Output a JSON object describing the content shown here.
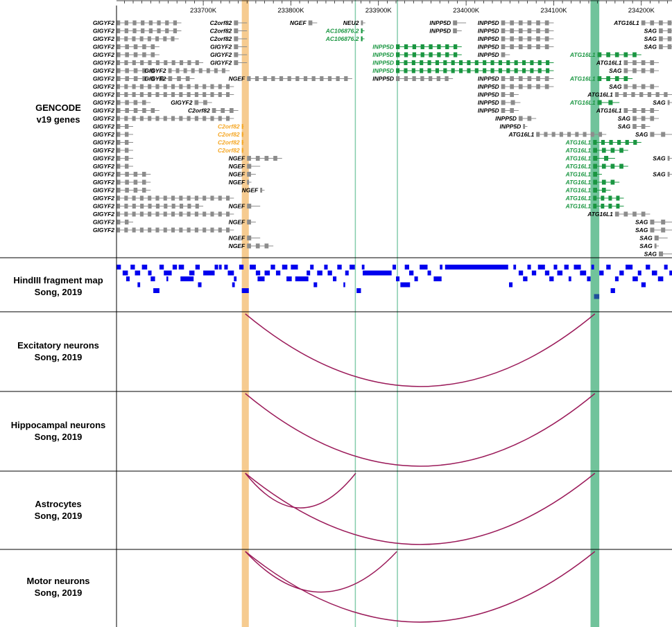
{
  "ruler": {
    "ticks": [
      "233700K",
      "233800K",
      "233900K",
      "234000K",
      "234100K",
      "234200K"
    ],
    "range_k": [
      233601,
      234235
    ]
  },
  "tracks": [
    {
      "id": "genes",
      "line1": "GENCODE",
      "line2": "v19 genes"
    },
    {
      "id": "hind",
      "line1": "HindIII fragment map",
      "line2": "Song, 2019"
    },
    {
      "id": "exc",
      "line1": "Excitatory neurons",
      "line2": "Song, 2019"
    },
    {
      "id": "hip",
      "line1": "Hippocampal neurons",
      "line2": "Song, 2019"
    },
    {
      "id": "ast",
      "line1": "Astrocytes",
      "line2": "Song, 2019"
    },
    {
      "id": "mot",
      "line1": "Motor neurons",
      "line2": "Song, 2019"
    }
  ],
  "highlights": [
    {
      "color": "#f5c27d",
      "from_k": 233744,
      "to_k": 233752
    },
    {
      "color": "#58b88a",
      "from_k": 234142,
      "to_k": 234152
    },
    {
      "color": "#6fc39c",
      "from_k": 233873,
      "to_k": 233874
    },
    {
      "color": "#6fc39c",
      "from_k": 233921,
      "to_k": 233922
    }
  ],
  "colors": {
    "gene": "#8c8c8c",
    "gene_label": "#000000",
    "gene_orange": "#f5a623",
    "gene_green": "#1a9641",
    "fragment": "#0000ee",
    "fragment_sel": "#1f4e9c",
    "arc": "#9b1b5a"
  },
  "genes": {
    "rows": [
      [
        [
          "GIGYF2",
          233601,
          233675,
          0
        ],
        [
          "C2orf82",
          233735,
          233750,
          0
        ],
        [
          "NGEF",
          233820,
          233830,
          0
        ],
        [
          "NEU2",
          233880,
          233885,
          0
        ],
        [
          "INPP5D",
          233985,
          234000,
          0
        ],
        [
          "INPP5D",
          234040,
          234100,
          0
        ],
        [
          "ATG16L1",
          234200,
          234240,
          0
        ]
      ],
      [
        [
          "GIGYF2",
          233601,
          233675,
          0
        ],
        [
          "C2orf82",
          233735,
          233750,
          0
        ],
        [
          "AC106876.2",
          233880,
          233884,
          2
        ],
        [
          "INPP5D",
          233985,
          233995,
          0
        ],
        [
          "INPP5D",
          234040,
          234100,
          0
        ],
        [
          "SAG",
          234220,
          234240,
          0
        ]
      ],
      [
        [
          "GIGYF2",
          233601,
          233672,
          0
        ],
        [
          "C2orf82",
          233735,
          233750,
          0
        ],
        [
          "AC106876.2",
          233880,
          233884,
          2
        ],
        [
          "INPP5D",
          234040,
          234100,
          0
        ],
        [
          "SAG",
          234220,
          234240,
          0
        ]
      ],
      [
        [
          "GIGYF2",
          233601,
          233650,
          0
        ],
        [
          "GIGYF2",
          233735,
          233750,
          0
        ],
        [
          "INPP5D",
          233920,
          233995,
          2
        ],
        [
          "INPP5D",
          234040,
          234100,
          0
        ],
        [
          "SAG",
          234220,
          234240,
          0
        ]
      ],
      [
        [
          "GIGYF2",
          233601,
          233650,
          0
        ],
        [
          "GIGYF2",
          233735,
          233750,
          0
        ],
        [
          "INPP5D",
          233920,
          233995,
          2
        ],
        [
          "INPP5D",
          234040,
          234050,
          0
        ],
        [
          "ATG16L1",
          234150,
          234200,
          2
        ]
      ],
      [
        [
          "GIGYF2",
          233601,
          233700,
          0
        ],
        [
          "GIGYF2",
          233735,
          233750,
          0
        ],
        [
          "INPP5D",
          233920,
          234100,
          2
        ],
        [
          "ATG16L1",
          234180,
          234220,
          0
        ]
      ],
      [
        [
          "GIGYF2",
          233601,
          233650,
          1
        ],
        [
          "GIGYF2",
          233660,
          233730,
          1
        ],
        [
          "INPP5D",
          233920,
          234100,
          2
        ],
        [
          "SAG",
          234180,
          234220,
          0
        ]
      ],
      [
        [
          "GIGYF2",
          233601,
          233660,
          1
        ],
        [
          "GIGYF2",
          233660,
          233690,
          1
        ],
        [
          "NGEF",
          233750,
          233870,
          1
        ],
        [
          "INPP5D",
          233920,
          233985,
          0
        ],
        [
          "INPP5D",
          234040,
          234100,
          0
        ],
        [
          "ATG16L1",
          234150,
          234190,
          2
        ]
      ],
      [
        [
          "GIGYF2",
          233601,
          233735,
          1
        ],
        [
          "INPP5D",
          234040,
          234100,
          0
        ],
        [
          "SAG",
          234180,
          234220,
          0
        ]
      ],
      [
        [
          "GIGYF2",
          233601,
          233735,
          1
        ],
        [
          "INPP5D",
          234040,
          234060,
          0
        ],
        [
          "ATG16L1",
          234170,
          234235,
          1
        ]
      ],
      [
        [
          "GIGYF2",
          233601,
          233640,
          1
        ],
        [
          "GIGYF2",
          233690,
          233710,
          1
        ],
        [
          "INPP5D",
          234040,
          234062,
          0
        ],
        [
          "ATG16L1",
          234150,
          234175,
          2
        ],
        [
          "SAG",
          234230,
          234235,
          0
        ]
      ],
      [
        [
          "GIGYF2",
          233601,
          233650,
          1
        ],
        [
          "C2orf82",
          233710,
          233740,
          1
        ],
        [
          "INPP5D",
          234040,
          234060,
          0
        ],
        [
          "ATG16L1",
          234180,
          234220,
          1
        ]
      ],
      [
        [
          "GIGYF2",
          233601,
          233735,
          1
        ],
        [
          "INPP5D",
          234060,
          234080,
          0
        ],
        [
          "SAG",
          234190,
          234220,
          0
        ]
      ],
      [
        [
          "GIGYF2",
          233601,
          233620,
          1
        ],
        [
          "C2orf82",
          233744,
          233746,
          3
        ],
        [
          "INPP5D",
          234065,
          234070,
          0
        ],
        [
          "SAG",
          234190,
          234210,
          0
        ]
      ],
      [
        [
          "GIGYF2",
          233601,
          233620,
          1
        ],
        [
          "C2orf82",
          233744,
          233746,
          3
        ],
        [
          "ATG16L1",
          234080,
          234160,
          0
        ],
        [
          "SAG",
          234210,
          234235,
          0
        ]
      ],
      [
        [
          "GIGYF2",
          233601,
          233620,
          1
        ],
        [
          "C2orf82",
          233744,
          233746,
          3
        ],
        [
          "ATG16L1",
          234145,
          234200,
          2
        ]
      ],
      [
        [
          "GIGYF2",
          233601,
          233620,
          1
        ],
        [
          "C2orf82",
          233744,
          233746,
          3
        ],
        [
          "ATG16L1",
          234145,
          234185,
          2
        ]
      ],
      [
        [
          "GIGYF2",
          233601,
          233620,
          1
        ],
        [
          "NGEF",
          233750,
          233790,
          0
        ],
        [
          "ATG16L1",
          234145,
          234170,
          2
        ],
        [
          "SAG",
          234230,
          234235,
          0
        ]
      ],
      [
        [
          "GIGYF2",
          233601,
          233620,
          1
        ],
        [
          "NGEF",
          233750,
          233765,
          0
        ],
        [
          "ATG16L1",
          234145,
          234185,
          2
        ]
      ],
      [
        [
          "GIGYF2",
          233601,
          233640,
          1
        ],
        [
          "NGEF",
          233750,
          233760,
          0
        ],
        [
          "ATG16L1",
          234145,
          234155,
          2
        ],
        [
          "SAG",
          234230,
          234235,
          0
        ]
      ],
      [
        [
          "GIGYF2",
          233601,
          233640,
          1
        ],
        [
          "NGEF",
          233750,
          233755,
          0
        ],
        [
          "ATG16L1",
          234145,
          234175,
          2
        ]
      ],
      [
        [
          "GIGYF2",
          233601,
          233640,
          1
        ],
        [
          "NGEF",
          233765,
          233770,
          0
        ],
        [
          "ATG16L1",
          234145,
          234165,
          2
        ]
      ],
      [
        [
          "GIGYF2",
          233601,
          233735,
          1
        ],
        [
          "ATG16L1",
          234145,
          234180,
          2
        ]
      ],
      [
        [
          "GIGYF2",
          233601,
          233700,
          1
        ],
        [
          "NGEF",
          233750,
          233765,
          0
        ],
        [
          "ATG16L1",
          234145,
          234180,
          2
        ]
      ],
      [
        [
          "GIGYF2",
          233601,
          233735,
          1
        ],
        [
          "ATG16L1",
          234170,
          234210,
          1
        ]
      ],
      [
        [
          "GIGYF2",
          233601,
          233620,
          1
        ],
        [
          "NGEF",
          233750,
          233760,
          0
        ],
        [
          "SAG",
          234210,
          234235,
          0
        ]
      ],
      [
        [
          "GIGYF2",
          233601,
          233735,
          1
        ],
        [
          "SAG",
          234210,
          234235,
          0
        ]
      ],
      [
        [
          "NGEF",
          233750,
          233765,
          0
        ],
        [
          "SAG",
          234215,
          234230,
          0
        ]
      ],
      [
        [
          "NGEF",
          233750,
          233780,
          0
        ],
        [
          "SAG",
          234215,
          234220,
          0
        ]
      ],
      [
        [
          "SAG",
          234220,
          234235,
          0
        ]
      ]
    ]
  },
  "hindiii": {
    "fragments": [
      [
        233601,
        233606,
        0
      ],
      [
        233608,
        233614,
        1
      ],
      [
        233612,
        233616,
        2
      ],
      [
        233617,
        233622,
        0
      ],
      [
        233622,
        233628,
        1
      ],
      [
        233625,
        233628,
        3
      ],
      [
        233630,
        233636,
        0
      ],
      [
        233637,
        233641,
        1
      ],
      [
        233640,
        233645,
        2
      ],
      [
        233643,
        233650,
        4
      ],
      [
        233650,
        233655,
        0
      ],
      [
        233655,
        233664,
        1
      ],
      [
        233658,
        233660,
        2
      ],
      [
        233665,
        233670,
        0
      ],
      [
        233672,
        233678,
        0
      ],
      [
        233674,
        233689,
        2
      ],
      [
        233684,
        233690,
        1
      ],
      [
        233691,
        233696,
        0
      ],
      [
        233694,
        233698,
        3
      ],
      [
        233700,
        233713,
        1
      ],
      [
        233713,
        233717,
        0
      ],
      [
        233718,
        233721,
        0
      ],
      [
        233724,
        233728,
        0
      ],
      [
        233728,
        233735,
        1
      ],
      [
        233733,
        233736,
        3
      ],
      [
        233735,
        233738,
        2
      ],
      [
        233741,
        233746,
        0
      ],
      [
        233744,
        233752,
        4
      ],
      [
        233753,
        233760,
        0
      ],
      [
        233760,
        233765,
        1
      ],
      [
        233762,
        233770,
        2
      ],
      [
        233770,
        233776,
        1
      ],
      [
        233777,
        233782,
        0
      ],
      [
        233783,
        233788,
        1
      ],
      [
        233790,
        233796,
        0
      ],
      [
        233795,
        233801,
        2
      ],
      [
        233800,
        233808,
        0
      ],
      [
        233805,
        233820,
        2
      ],
      [
        233818,
        233822,
        1
      ],
      [
        233822,
        233826,
        0
      ],
      [
        233826,
        233830,
        3
      ],
      [
        233830,
        233836,
        1
      ],
      [
        233838,
        233842,
        0
      ],
      [
        233842,
        233847,
        1
      ],
      [
        233848,
        233852,
        2
      ],
      [
        233853,
        233858,
        0
      ],
      [
        233860,
        233862,
        3
      ],
      [
        233862,
        233866,
        1
      ],
      [
        233867,
        233873,
        0
      ],
      [
        233875,
        233880,
        4
      ],
      [
        233881,
        233884,
        0
      ],
      [
        233882,
        233915,
        1
      ],
      [
        233916,
        233920,
        0
      ],
      [
        233920,
        233924,
        2
      ],
      [
        233925,
        233936,
        3
      ],
      [
        233930,
        233935,
        0
      ],
      [
        233935,
        233940,
        1
      ],
      [
        233941,
        233945,
        2
      ],
      [
        233947,
        233956,
        0
      ],
      [
        233956,
        233960,
        1
      ],
      [
        233963,
        233972,
        2
      ],
      [
        233970,
        233973,
        0
      ],
      [
        233976,
        234048,
        0
      ],
      [
        234049,
        234053,
        3
      ],
      [
        234054,
        234057,
        0
      ],
      [
        234060,
        234065,
        1
      ],
      [
        234065,
        234070,
        2
      ],
      [
        234070,
        234074,
        0
      ],
      [
        234075,
        234080,
        1
      ],
      [
        234082,
        234090,
        0
      ],
      [
        234090,
        234095,
        1
      ],
      [
        234095,
        234100,
        2
      ],
      [
        234100,
        234104,
        0
      ],
      [
        234104,
        234110,
        1
      ],
      [
        234112,
        234117,
        0
      ],
      [
        234117,
        234120,
        2
      ],
      [
        234123,
        234131,
        0
      ],
      [
        234130,
        234137,
        1
      ],
      [
        234138,
        234142,
        2
      ],
      [
        234143,
        234146,
        0
      ],
      [
        234146,
        234152,
        5
      ],
      [
        234152,
        234157,
        1
      ],
      [
        234160,
        234165,
        0
      ],
      [
        234165,
        234170,
        4
      ],
      [
        234170,
        234174,
        2
      ],
      [
        234175,
        234180,
        1
      ],
      [
        234182,
        234190,
        0
      ],
      [
        234190,
        234196,
        2
      ],
      [
        234196,
        234200,
        1
      ],
      [
        234200,
        234205,
        3
      ],
      [
        234205,
        234210,
        0
      ],
      [
        234212,
        234218,
        1
      ],
      [
        234219,
        234225,
        2
      ],
      [
        234226,
        234230,
        0
      ],
      [
        234232,
        234235,
        1
      ]
    ]
  },
  "arcs": {
    "exc": [
      [
        233748,
        234147
      ]
    ],
    "hip": [
      [
        233748,
        234147
      ]
    ],
    "ast": [
      [
        233748,
        233874
      ],
      [
        233748,
        234147
      ]
    ],
    "mot": [
      [
        233748,
        233921
      ],
      [
        233748,
        234147
      ]
    ]
  }
}
